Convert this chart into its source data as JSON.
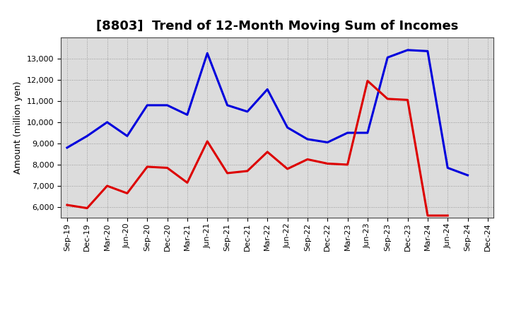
{
  "title": "[8803]  Trend of 12-Month Moving Sum of Incomes",
  "ylabel": "Amount (million yen)",
  "x_labels": [
    "Sep-19",
    "Dec-19",
    "Mar-20",
    "Jun-20",
    "Sep-20",
    "Dec-20",
    "Mar-21",
    "Jun-21",
    "Sep-21",
    "Dec-21",
    "Mar-22",
    "Jun-22",
    "Sep-22",
    "Dec-22",
    "Mar-23",
    "Jun-23",
    "Sep-23",
    "Dec-23",
    "Mar-24",
    "Jun-24",
    "Sep-24",
    "Dec-24"
  ],
  "ordinary_income": [
    8800,
    9350,
    10000,
    9350,
    10800,
    10800,
    10350,
    13250,
    10800,
    10500,
    11550,
    9750,
    9200,
    9050,
    9500,
    9500,
    13050,
    13400,
    13350,
    7850,
    7500,
    null
  ],
  "net_income": [
    6100,
    5950,
    7000,
    6650,
    7900,
    7850,
    7150,
    9100,
    7600,
    7700,
    8600,
    7800,
    8250,
    8050,
    8000,
    11950,
    11100,
    11050,
    5600,
    5600,
    null,
    null
  ],
  "ordinary_income_color": "#0000dd",
  "net_income_color": "#dd0000",
  "ylim": [
    5500,
    14000
  ],
  "yticks": [
    6000,
    7000,
    8000,
    9000,
    10000,
    11000,
    12000,
    13000
  ],
  "grid_color": "#999999",
  "bg_color": "#dcdcdc",
  "line_width": 2.2,
  "title_fontsize": 13,
  "axis_label_fontsize": 9,
  "tick_fontsize": 8,
  "legend_fontsize": 10
}
